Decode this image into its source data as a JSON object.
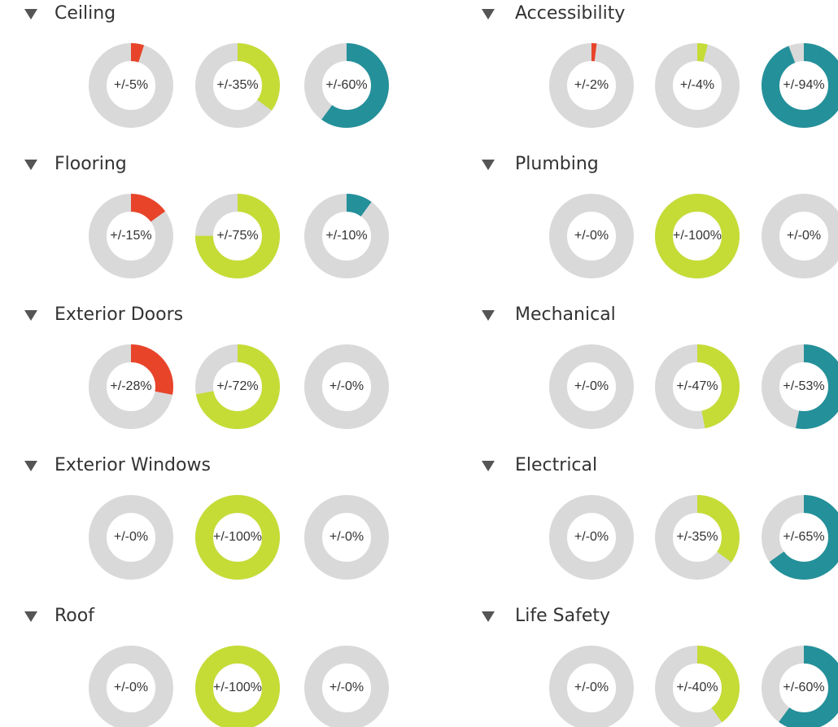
{
  "colors": [
    "#e8442a",
    "#c5dc36",
    "#24909a"
  ],
  "track_color": "#d9d9d9",
  "sections": [
    {
      "title": "Ceiling",
      "gauges": [
        {
          "value": 5,
          "label": "+/-5%"
        },
        {
          "value": 35,
          "label": "+/-35%"
        },
        {
          "value": 60,
          "label": "+/-60%"
        }
      ]
    },
    {
      "title": "Accessibility",
      "gauges": [
        {
          "value": 2,
          "label": "+/-2%"
        },
        {
          "value": 4,
          "label": "+/-4%"
        },
        {
          "value": 94,
          "label": "+/-94%"
        }
      ]
    },
    {
      "title": "Flooring",
      "gauges": [
        {
          "value": 15,
          "label": "+/-15%"
        },
        {
          "value": 75,
          "label": "+/-75%"
        },
        {
          "value": 10,
          "label": "+/-10%"
        }
      ]
    },
    {
      "title": "Plumbing",
      "gauges": [
        {
          "value": 0,
          "label": "+/-0%"
        },
        {
          "value": 100,
          "label": "+/-100%"
        },
        {
          "value": 0,
          "label": "+/-0%"
        }
      ]
    },
    {
      "title": "Exterior Doors",
      "gauges": [
        {
          "value": 28,
          "label": "+/-28%"
        },
        {
          "value": 72,
          "label": "+/-72%"
        },
        {
          "value": 0,
          "label": "+/-0%"
        }
      ]
    },
    {
      "title": "Mechanical",
      "gauges": [
        {
          "value": 0,
          "label": "+/-0%"
        },
        {
          "value": 47,
          "label": "+/-47%"
        },
        {
          "value": 53,
          "label": "+/-53%"
        }
      ]
    },
    {
      "title": "Exterior Windows",
      "gauges": [
        {
          "value": 0,
          "label": "+/-0%"
        },
        {
          "value": 100,
          "label": "+/-100%"
        },
        {
          "value": 0,
          "label": "+/-0%"
        }
      ]
    },
    {
      "title": "Electrical",
      "gauges": [
        {
          "value": 0,
          "label": "+/-0%"
        },
        {
          "value": 35,
          "label": "+/-35%"
        },
        {
          "value": 65,
          "label": "+/-65%"
        }
      ]
    },
    {
      "title": "Roof",
      "gauges": [
        {
          "value": 0,
          "label": "+/-0%"
        },
        {
          "value": 100,
          "label": "+/-100%"
        },
        {
          "value": 0,
          "label": "+/-0%"
        }
      ]
    },
    {
      "title": "Life Safety",
      "gauges": [
        {
          "value": 0,
          "label": "+/-0%"
        },
        {
          "value": 40,
          "label": "+/-40%"
        },
        {
          "value": 60,
          "label": "+/-60%"
        }
      ]
    }
  ]
}
